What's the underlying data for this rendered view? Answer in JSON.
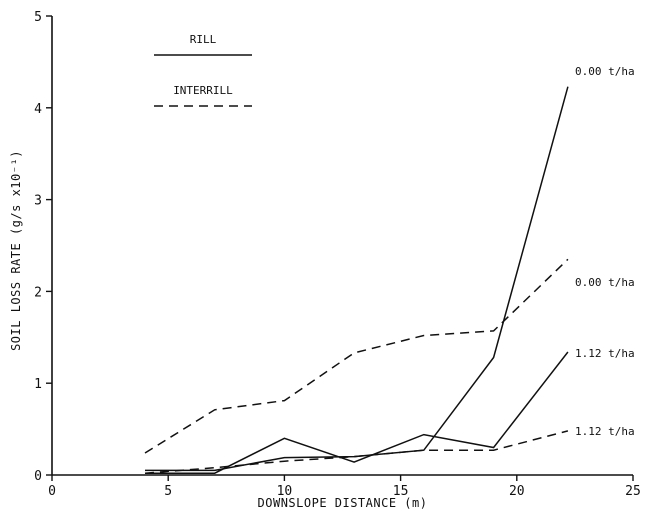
{
  "chart_data": {
    "type": "line",
    "xlabel": "DOWNSLOPE DISTANCE (m)",
    "ylabel": "SOIL LOSS RATE (g/s x10⁻¹)",
    "xlim": [
      0,
      25
    ],
    "ylim": [
      0,
      5
    ],
    "xticks": [
      0,
      5,
      10,
      15,
      20,
      25
    ],
    "yticks": [
      0,
      1,
      2,
      3,
      4,
      5
    ],
    "grid": false,
    "legend": {
      "placement": "top-left",
      "entries": [
        {
          "label": "RILL",
          "style": "solid"
        },
        {
          "label": "INTERRILL",
          "style": "dashed"
        }
      ]
    },
    "series": [
      {
        "name": "0.00 t/ha",
        "group": "RILL",
        "style": "solid",
        "x": [
          4,
          7,
          10,
          13,
          16,
          19,
          22.2
        ],
        "y": [
          0.05,
          0.05,
          0.19,
          0.2,
          0.27,
          1.28,
          4.23
        ]
      },
      {
        "name": "1.12 t/ha",
        "group": "RILL",
        "style": "solid",
        "x": [
          4,
          7,
          10,
          13,
          16,
          19,
          22.2
        ],
        "y": [
          0.02,
          0.02,
          0.4,
          0.14,
          0.44,
          0.3,
          1.34
        ]
      },
      {
        "name": "0.00 t/ha",
        "group": "INTERRILL",
        "style": "dashed",
        "x": [
          4,
          7,
          10,
          13,
          16,
          19,
          22.2
        ],
        "y": [
          0.24,
          0.71,
          0.81,
          1.33,
          1.52,
          1.57,
          2.35
        ]
      },
      {
        "name": "1.12 t/ha",
        "group": "INTERRILL",
        "style": "dashed",
        "x": [
          4,
          7,
          10,
          13,
          16,
          19,
          22.2
        ],
        "y": [
          0.02,
          0.08,
          0.15,
          0.2,
          0.27,
          0.27,
          0.48
        ]
      }
    ],
    "annotations": [
      {
        "text": "0.00 t/ha",
        "x": 22.2,
        "y": 4.4
      },
      {
        "text": "0.00 t/ha",
        "x": 22.2,
        "y": 2.1
      },
      {
        "text": "1.12 t/ha",
        "x": 22.2,
        "y": 1.33
      },
      {
        "text": "1.12 t/ha",
        "x": 22.2,
        "y": 0.48
      }
    ]
  }
}
